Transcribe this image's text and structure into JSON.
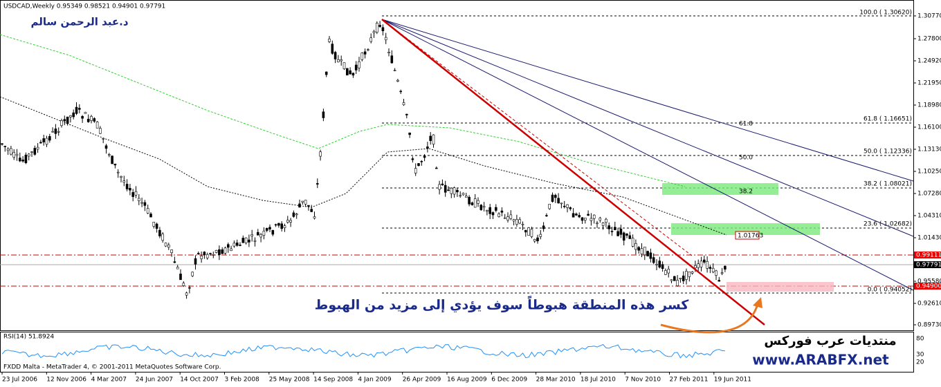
{
  "header": {
    "info": "USDCAD,Weekly  0.95349 0.98521 0.94901 0.97791",
    "author": "د.عبد الرحمن سالم"
  },
  "price_axis": [
    "1.30770",
    "1.27800",
    "1.24920",
    "1.21950",
    "1.18980",
    "1.16100",
    "1.13130",
    "1.10250",
    "1.07280",
    "1.04310",
    "1.01430",
    "0.95580",
    "0.92610",
    "0.89730"
  ],
  "price_markers": {
    "upper": "0.99111",
    "current": "0.97791",
    "lower": "0.94900"
  },
  "fibonacci": {
    "levels": [
      "100.0 ( 1.30620)",
      "61.8 ( 1.16651)",
      "50.0 ( 1.12336)",
      "38.2 ( 1.08021)",
      "23.6 ( 1.02682)",
      "0.0 ( 0.94052)"
    ],
    "fan_labels": [
      "61.8",
      "50.0",
      "38.2"
    ],
    "box_label": "1.01763"
  },
  "annotation": "كسر هذه المنطقة هبوطاً سوف يؤدي  إلى مزيد من الهبوط",
  "rsi": {
    "label": "RSI(14) 51.8924",
    "axis": [
      "80",
      "30",
      "20"
    ]
  },
  "footer": {
    "copyright": "FXDD Malta - MetaTrader 4, © 2001-2011 MetaQuotes Software Corp.",
    "forum": "منتديات عرب فوركس",
    "site": "www.ARABFX.net"
  },
  "dates": [
    "23 Jul 2006",
    "12 Nov 2006",
    "4 Mar 2007",
    "24 Jun 2007",
    "14 Oct 2007",
    "3 Feb 2008",
    "25 May 2008",
    "14 Sep 2008",
    "4 Jan 2009",
    "26 Apr 2009",
    "16 Aug 2009",
    "6 Dec 2009",
    "28 Mar 2010",
    "18 Jul 2010",
    "7 Nov 2010",
    "27 Feb 2011",
    "19 Jun 2011"
  ]
}
